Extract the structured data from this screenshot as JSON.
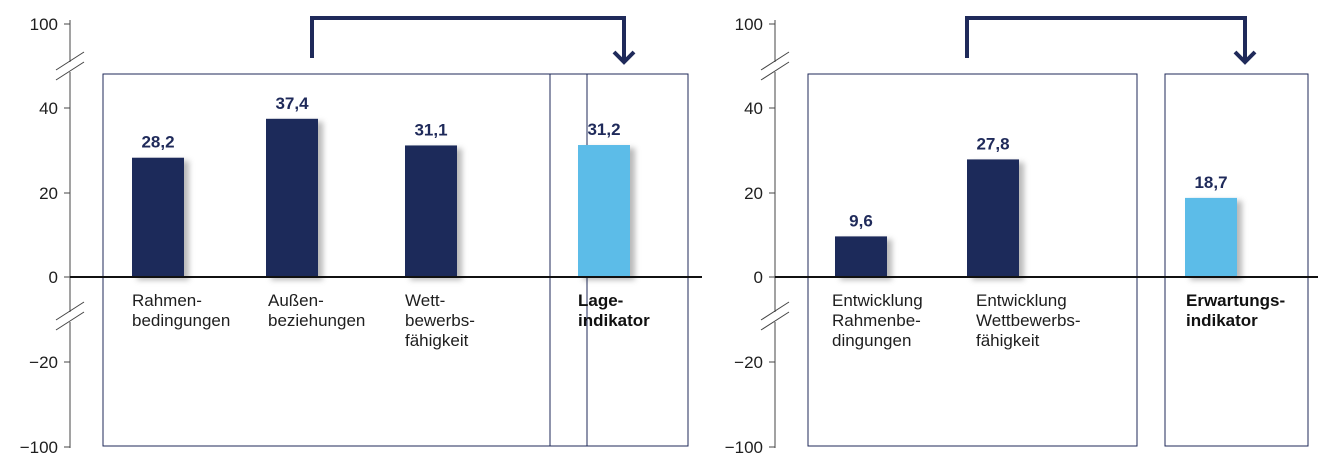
{
  "colors": {
    "dark_bar": "#1f2a5a",
    "light_bar": "#5bbce8",
    "frame": "#1f2a5a",
    "axis": "#444444"
  },
  "chart_data": [
    {
      "type": "bar",
      "categories": [
        "Rahmen-\nbedingungen",
        "Außen-\nbeziehungen",
        "Wett-\nbewerbs-\nfähigkeit"
      ],
      "values": [
        28.2,
        37.4,
        31.1
      ],
      "value_labels": [
        "28,2",
        "37,4",
        "31,1"
      ],
      "indicator": {
        "label": "Lage-\nindikator",
        "value": 31.2,
        "value_label": "31,2"
      },
      "y_ticks": [
        "100",
        "40",
        "20",
        "0",
        "−20",
        "−100"
      ],
      "axis_break": true
    },
    {
      "type": "bar",
      "categories": [
        "Entwicklung\nRahmenbe-\ndingungen",
        "Entwicklung\nWettbewerbs-\nfähigkeit"
      ],
      "values": [
        9.6,
        27.8
      ],
      "value_labels": [
        "9,6",
        "27,8"
      ],
      "indicator": {
        "label": "Erwartungs-\nindikator",
        "value": 18.7,
        "value_label": "18,7"
      },
      "y_ticks": [
        "100",
        "40",
        "20",
        "0",
        "−20",
        "−100"
      ],
      "axis_break": true
    }
  ]
}
